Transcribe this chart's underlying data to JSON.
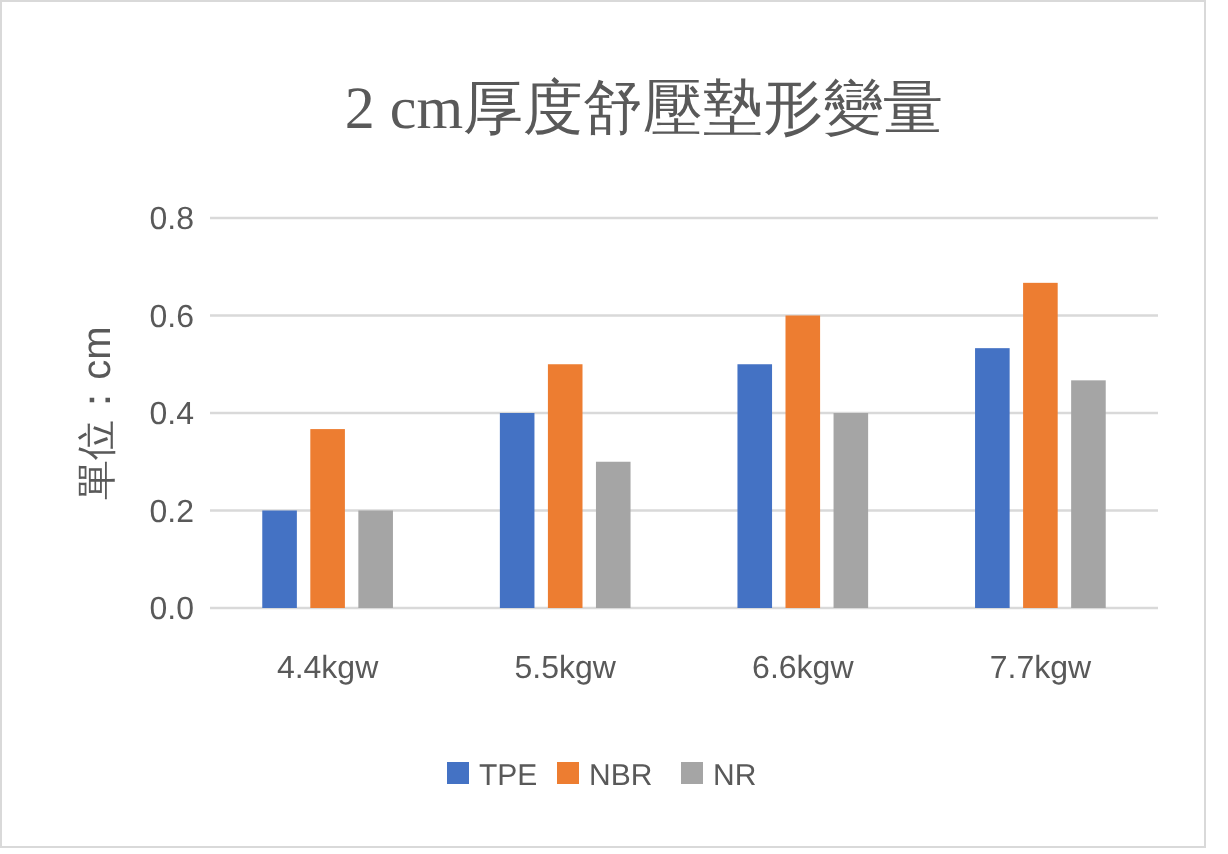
{
  "chart_data": {
    "type": "bar",
    "title": "2 cm厚度舒壓墊形變量",
    "ylabel": "單位：cm",
    "categories": [
      "4.4kgw",
      "5.5kgw",
      "6.6kgw",
      "7.7kgw"
    ],
    "series": [
      {
        "name": "TPE",
        "color": "#4472c4",
        "values": [
          0.2,
          0.4,
          0.5,
          0.533
        ]
      },
      {
        "name": "NBR",
        "color": "#ed7d31",
        "values": [
          0.367,
          0.5,
          0.6,
          0.667
        ]
      },
      {
        "name": "NR",
        "color": "#a5a5a5",
        "values": [
          0.2,
          0.3,
          0.4,
          0.467
        ]
      }
    ],
    "ylim": [
      0,
      0.8
    ],
    "yticks": [
      {
        "value": 0,
        "label": "0.0"
      },
      {
        "value": 0.2,
        "label": "0.2"
      },
      {
        "value": 0.4,
        "label": "0.4"
      },
      {
        "value": 0.6,
        "label": "0.6"
      },
      {
        "value": 0.8,
        "label": "0.8"
      }
    ],
    "grid": "y",
    "legend": "bottom"
  }
}
